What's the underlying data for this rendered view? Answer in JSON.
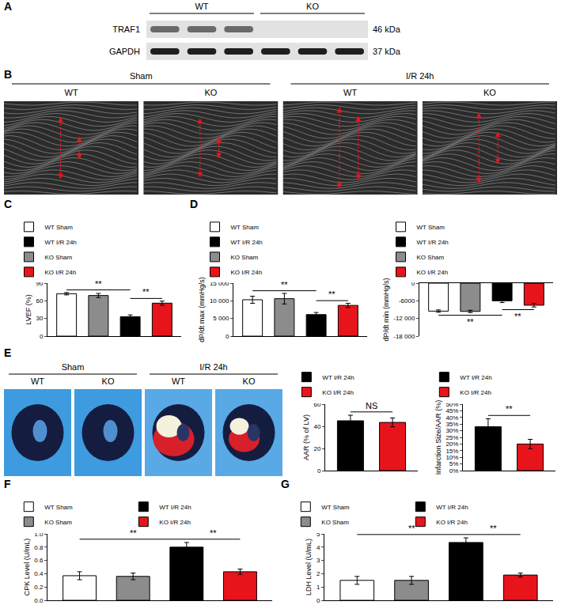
{
  "panels": [
    {
      "label": "A",
      "type": "western_blot",
      "groups": [
        {
          "label": "WT",
          "lanes": 3
        },
        {
          "label": "KO",
          "lanes": 3
        }
      ],
      "rows": [
        {
          "protein": "TRAF1",
          "size": "46 kDa",
          "detected_in": [
            "WT"
          ]
        },
        {
          "protein": "GAPDH",
          "size": "37 kDa",
          "detected_in": [
            "WT",
            "KO"
          ]
        }
      ]
    },
    {
      "label": "B",
      "type": "echo_images",
      "groups": [
        {
          "label": "Sham",
          "columns": [
            "WT",
            "KO"
          ]
        },
        {
          "label": "I/R 24h",
          "columns": [
            "WT",
            "KO"
          ]
        }
      ]
    },
    {
      "label": "E",
      "type": "heart_sections",
      "groups": [
        {
          "label": "Sham",
          "columns": [
            "WT",
            "KO"
          ]
        },
        {
          "label": "I/R 24h",
          "columns": [
            "WT",
            "KO"
          ]
        }
      ]
    }
  ],
  "chart_data": [
    {
      "panel": "C",
      "type": "bar",
      "y_label": "LVEF (%)",
      "categories": [
        "WT Sham",
        "KO Sham",
        "WT I/R 24h",
        "KO I/R 24h"
      ],
      "values": [
        72,
        69,
        33,
        56
      ],
      "errors": [
        2,
        3.5,
        3,
        3.5
      ],
      "colors": [
        "#ffffff",
        "#8c8c8c",
        "#000000",
        "#e8141c"
      ],
      "ylim": [
        0,
        90
      ],
      "yticks": [
        0,
        30,
        60,
        90
      ],
      "legend": "top",
      "tick_labels": "y",
      "grid": false,
      "annotations": [
        {
          "between": [
            "WT Sham",
            "WT I/R 24h"
          ],
          "text": "**"
        },
        {
          "between": [
            "WT I/R 24h",
            "KO I/R 24h"
          ],
          "text": "**"
        }
      ]
    },
    {
      "panel": "D",
      "type": "bar",
      "y_label": "dP/dt max (mmHg/s)",
      "categories": [
        "WT Sham",
        "KO Sham",
        "WT I/R 24h",
        "KO I/R 24h"
      ],
      "values": [
        10300,
        10600,
        6100,
        8700
      ],
      "errors": [
        1000,
        1500,
        600,
        600
      ],
      "colors": [
        "#ffffff",
        "#8c8c8c",
        "#000000",
        "#e8141c"
      ],
      "ylim": [
        0,
        15000
      ],
      "yticks": [
        0,
        {
          "value": 5000,
          "label": "5 000"
        },
        {
          "value": 10000,
          "label": "10 000"
        },
        {
          "value": 15000,
          "label": "15 000"
        }
      ],
      "legend": "top",
      "tick_labels": "y",
      "grid": false,
      "annotations": [
        {
          "between": [
            "WT Sham",
            "WT I/R 24h"
          ],
          "text": "**"
        },
        {
          "between": [
            "WT I/R 24h",
            "KO I/R 24h"
          ],
          "text": "**"
        }
      ]
    },
    {
      "type": "bar",
      "y_label": "dP/dt min (mmHg/s)",
      "categories": [
        "WT Sham",
        "KO Sham",
        "WT I/R 24h",
        "KO I/R 24h"
      ],
      "values": [
        -9500,
        -9600,
        -6000,
        -7500
      ],
      "errors": [
        400,
        400,
        600,
        600
      ],
      "colors": [
        "#ffffff",
        "#8c8c8c",
        "#000000",
        "#e8141c"
      ],
      "ylim": [
        -18000,
        0
      ],
      "yticks": [
        {
          "value": -18000,
          "label": "-18 000"
        },
        {
          "value": -12000,
          "label": "-12 000"
        },
        -6000,
        0
      ],
      "legend": "top",
      "tick_labels": "y",
      "grid": false,
      "annotations": [
        {
          "between": [
            "WT Sham",
            "WT I/R 24h"
          ],
          "text": "**"
        },
        {
          "between": [
            "WT I/R 24h",
            "KO I/R 24h"
          ],
          "text": "**"
        }
      ]
    },
    {
      "type": "bar",
      "y_label": "AAR (% of LV)",
      "categories": [
        "WT I/R 24h",
        "KO I/R 24h"
      ],
      "values": [
        45,
        43.5
      ],
      "errors": [
        5,
        4
      ],
      "colors": [
        "#000000",
        "#e8141c"
      ],
      "ylim": [
        0,
        60
      ],
      "yticks": [
        0,
        20,
        40,
        60
      ],
      "legend": "top",
      "tick_labels": "y",
      "grid": false,
      "annotations": [
        {
          "between": [
            "WT I/R 24h",
            "KO I/R 24h"
          ],
          "text": "NS"
        }
      ]
    },
    {
      "type": "bar",
      "y_label": "Infarction Size/AAR (%)",
      "categories": [
        "WT I/R 24h",
        "KO I/R 24h"
      ],
      "values": [
        33,
        20
      ],
      "errors": [
        6,
        3.5
      ],
      "colors": [
        "#000000",
        "#e8141c"
      ],
      "ylim": [
        0,
        50
      ],
      "yticks": [
        {
          "value": 0,
          "label": "0%"
        },
        {
          "value": 5,
          "label": "5%"
        },
        {
          "value": 10,
          "label": "10%"
        },
        {
          "value": 15,
          "label": "15%"
        },
        {
          "value": 20,
          "label": "20%"
        },
        {
          "value": 25,
          "label": "25%"
        },
        {
          "value": 30,
          "label": "30%"
        },
        {
          "value": 35,
          "label": "35%"
        },
        {
          "value": 40,
          "label": "40%"
        },
        {
          "value": 45,
          "label": "45%"
        },
        {
          "value": 50,
          "label": "50%"
        }
      ],
      "legend": "top",
      "tick_labels": "y",
      "grid": false,
      "annotations": [
        {
          "between": [
            "WT I/R 24h",
            "KO I/R 24h"
          ],
          "text": "**"
        }
      ]
    },
    {
      "panel": "F",
      "type": "bar",
      "y_label": "CPK Level (U/mL)",
      "categories": [
        "WT Sham",
        "KO Sham",
        "WT I/R 24h",
        "KO I/R 24h"
      ],
      "values": [
        0.37,
        0.36,
        0.8,
        0.43
      ],
      "errors": [
        0.06,
        0.05,
        0.07,
        0.04
      ],
      "colors": [
        "#ffffff",
        "#8c8c8c",
        "#000000",
        "#e8141c"
      ],
      "ylim": [
        0,
        1
      ],
      "yticks": [
        {
          "value": 0,
          "label": "0.0"
        },
        0.2,
        0.4,
        0.6,
        0.8,
        {
          "value": 1,
          "label": "1.0"
        }
      ],
      "legend": "top",
      "tick_labels": "y",
      "grid": false,
      "annotations": [
        {
          "between": [
            "WT Sham",
            "WT I/R 24h"
          ],
          "text": "**"
        },
        {
          "between": [
            "WT I/R 24h",
            "KO I/R 24h"
          ],
          "text": "**"
        }
      ]
    },
    {
      "panel": "G",
      "type": "bar",
      "y_label": "LDH Level (U/mL)",
      "categories": [
        "WT Sham",
        "KO Sham",
        "WT I/R 24h",
        "KO I/R 24h"
      ],
      "values": [
        1.5,
        1.5,
        4.35,
        1.9
      ],
      "errors": [
        0.3,
        0.3,
        0.35,
        0.15
      ],
      "colors": [
        "#ffffff",
        "#8c8c8c",
        "#000000",
        "#e8141c"
      ],
      "ylim": [
        0,
        5
      ],
      "yticks": [
        0,
        1,
        2,
        3,
        4,
        5
      ],
      "legend": "top",
      "tick_labels": "y",
      "grid": false,
      "annotations": [
        {
          "between": [
            "WT Sham",
            "WT I/R 24h"
          ],
          "text": "**"
        },
        {
          "between": [
            "WT I/R 24h",
            "KO I/R 24h"
          ],
          "text": "**"
        }
      ]
    }
  ]
}
